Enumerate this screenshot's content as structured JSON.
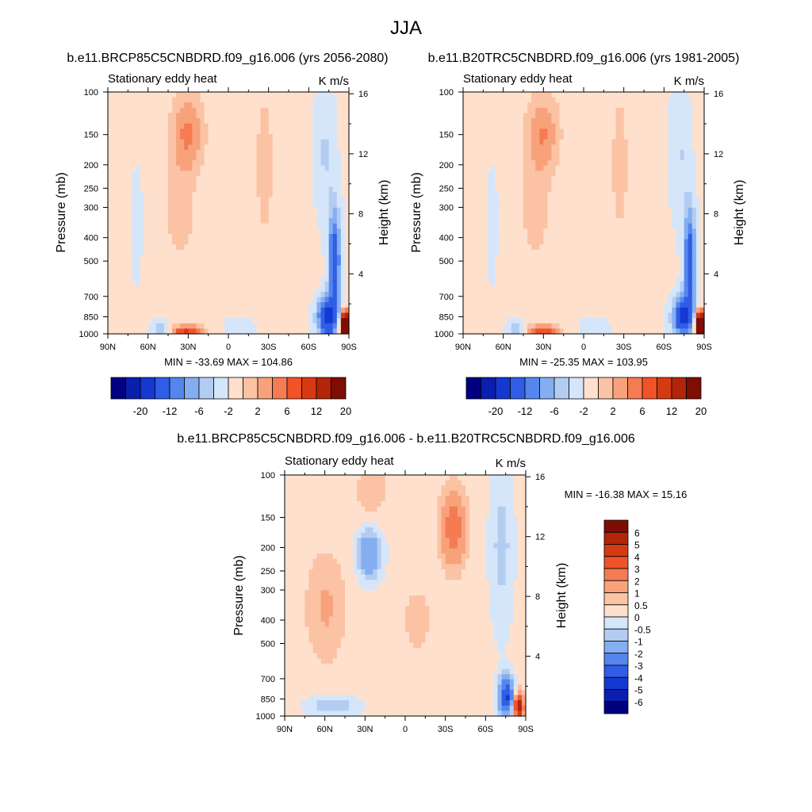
{
  "figure": {
    "title": "JJA"
  },
  "colors": {
    "panel": [
      "#000080",
      "#0a1fae",
      "#1438d2",
      "#2f5de6",
      "#5486ed",
      "#84aef0",
      "#b3cdf2",
      "#d6e6fa",
      "#fee0cc",
      "#fbc2a4",
      "#f8a27c",
      "#f47b52",
      "#ef5327",
      "#d63a12",
      "#b32508",
      "#7e0e04"
    ],
    "diff": [
      "#000080",
      "#0a1fae",
      "#1438d2",
      "#2f5de6",
      "#5486ed",
      "#84aef0",
      "#b3cdf2",
      "#d6e6fa",
      "#fee0cc",
      "#fbc2a4",
      "#f8a27c",
      "#f47b52",
      "#ef5327",
      "#d63a12",
      "#b32508",
      "#7e0e04"
    ]
  },
  "chart_data": [
    {
      "type": "heatmap",
      "title": "b.e11.BRCP85C5CNBDRD.f09_g16.006 (yrs 2056-2080)",
      "left_label": "Stationary eddy heat",
      "right_label": "K m/s",
      "xlabel": "",
      "ylabel": "Pressure (mb)",
      "ylabel_right": "Height (km)",
      "x_ticks": [
        "90N",
        "60N",
        "30N",
        "0",
        "30S",
        "60S",
        "90S"
      ],
      "y_ticks": [
        "100",
        "150",
        "200",
        "250",
        "300",
        "400",
        "500",
        "700",
        "850",
        "1000"
      ],
      "y_ticks_right": [
        "16",
        "12",
        "8",
        "4"
      ],
      "stats": "MIN = -33.69  MAX = 104.86",
      "colorbar_labels": [
        "-20",
        "-12",
        "-6",
        "-2",
        "2",
        "6",
        "12",
        "20"
      ],
      "levels": [
        -20,
        -16,
        -12,
        -8,
        -6,
        -4,
        -2,
        0,
        2,
        4,
        6,
        8,
        12,
        16,
        20
      ],
      "field_min": -33.69,
      "field_max": 104.86,
      "scale": 1.0,
      "y_scale": "log",
      "ylim": [
        1000,
        100
      ]
    },
    {
      "type": "heatmap",
      "title": "b.e11.B20TRC5CNBDRD.f09_g16.006 (yrs 1981-2005)",
      "left_label": "Stationary eddy heat",
      "right_label": "K m/s",
      "xlabel": "",
      "ylabel": "Pressure (mb)",
      "ylabel_right": "Height (km)",
      "x_ticks": [
        "90N",
        "60N",
        "30N",
        "0",
        "30S",
        "60S",
        "90S"
      ],
      "y_ticks": [
        "100",
        "150",
        "200",
        "250",
        "300",
        "400",
        "500",
        "700",
        "850",
        "1000"
      ],
      "y_ticks_right": [
        "16",
        "12",
        "8",
        "4"
      ],
      "stats": "MIN = -25.35  MAX = 103.95",
      "colorbar_labels": [
        "-20",
        "-12",
        "-6",
        "-2",
        "2",
        "6",
        "12",
        "20"
      ],
      "levels": [
        -20,
        -16,
        -12,
        -8,
        -6,
        -4,
        -2,
        0,
        2,
        4,
        6,
        8,
        12,
        16,
        20
      ],
      "field_min": -25.35,
      "field_max": 103.95,
      "scale": 0.95,
      "y_scale": "log",
      "ylim": [
        1000,
        100
      ]
    },
    {
      "type": "heatmap",
      "title": "b.e11.BRCP85C5CNBDRD.f09_g16.006 - b.e11.B20TRC5CNBDRD.f09_g16.006",
      "left_label": "Stationary eddy heat",
      "right_label": "K m/s",
      "xlabel": "",
      "ylabel": "Pressure (mb)",
      "ylabel_right": "Height (km)",
      "x_ticks": [
        "90N",
        "60N",
        "30N",
        "0",
        "30S",
        "60S",
        "90S"
      ],
      "y_ticks": [
        "100",
        "150",
        "200",
        "250",
        "300",
        "400",
        "500",
        "700",
        "850",
        "1000"
      ],
      "y_ticks_right": [
        "16",
        "12",
        "8",
        "4"
      ],
      "stats": "MIN = -16.38  MAX =  15.16",
      "colorbar_labels": [
        "6",
        "5",
        "4",
        "3",
        "2",
        "1",
        "0.5",
        "0",
        "-0.5",
        "-1",
        "-2",
        "-3",
        "-4",
        "-5",
        "-6"
      ],
      "levels": [
        -6,
        -5,
        -4,
        -3,
        -2,
        -1,
        -0.5,
        0,
        0.5,
        1,
        2,
        3,
        4,
        5,
        6
      ],
      "field_min": -16.38,
      "field_max": 15.16,
      "y_scale": "log",
      "ylim": [
        1000,
        100
      ]
    }
  ]
}
